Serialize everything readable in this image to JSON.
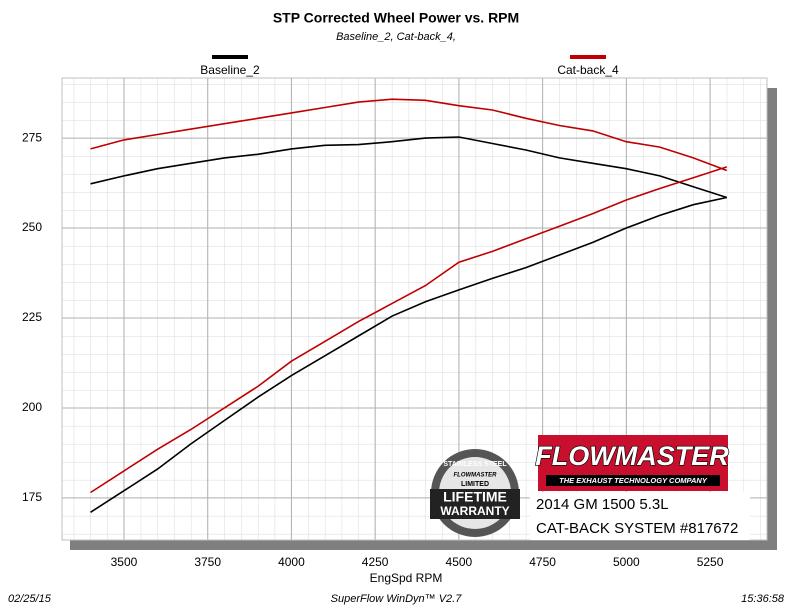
{
  "chart_data": {
    "type": "line",
    "title": "STP Corrected Wheel Power vs. RPM",
    "subtitle": "Baseline_2, Cat-back_4,",
    "x_label": "EngSpd RPM",
    "x": [
      3400,
      3500,
      3600,
      3700,
      3800,
      3900,
      4000,
      4100,
      4200,
      4300,
      4400,
      4500,
      4600,
      4700,
      4800,
      4900,
      5000,
      5100,
      5200,
      5300
    ],
    "series": [
      {
        "name": "Baseline_2",
        "color": "#000000",
        "curves": [
          [
            171,
            177,
            183,
            190,
            196.5,
            203,
            209,
            214.5,
            220,
            225.5,
            229.5,
            232.8,
            236,
            239,
            242.5,
            246,
            250,
            253.5,
            256.5,
            258.5
          ],
          [
            262.3,
            264.5,
            266.5,
            268,
            269.5,
            270.5,
            272,
            273,
            273.2,
            274,
            275,
            275.3,
            273.5,
            271.7,
            269.5,
            268,
            266.5,
            264.5,
            261.5,
            258.5
          ]
        ]
      },
      {
        "name": "Cat-back_4",
        "color": "#c00000",
        "curves": [
          [
            176.5,
            182.5,
            188.5,
            194,
            200,
            206,
            213,
            218.5,
            224,
            229,
            234,
            240.5,
            243.5,
            247,
            250.5,
            254,
            257.8,
            261,
            264,
            267
          ],
          [
            272,
            274.5,
            276,
            277.5,
            279,
            280.5,
            282,
            283.5,
            285,
            285.8,
            285.5,
            284,
            282.8,
            280.5,
            278.5,
            277,
            274,
            272.5,
            269.5,
            266
          ]
        ]
      }
    ],
    "xlim": [
      3315,
      5420
    ],
    "ylim": [
      163.3,
      291.7
    ],
    "xticks": [
      3500,
      3750,
      4000,
      4250,
      4500,
      4750,
      5000,
      5250
    ],
    "yticks": [
      175,
      200,
      225,
      250,
      275
    ],
    "grid": true,
    "footer": {
      "date": "02/25/15",
      "software": "SuperFlow WinDyn™ V2.7",
      "time": "15:36:58"
    },
    "logo": {
      "brand": "FLOWMASTER",
      "tagline": "THE EXHAUST TECHNOLOGY COMPANY"
    },
    "badge": {
      "top": "STAINLESS STEEL",
      "brand": "FLOWMASTER",
      "middle": "LIMITED",
      "line1": "LIFETIME",
      "line2": "WARRANTY"
    },
    "caption": [
      "2014 GM 1500 5.3L",
      "CAT-BACK SYSTEM #817672"
    ]
  }
}
